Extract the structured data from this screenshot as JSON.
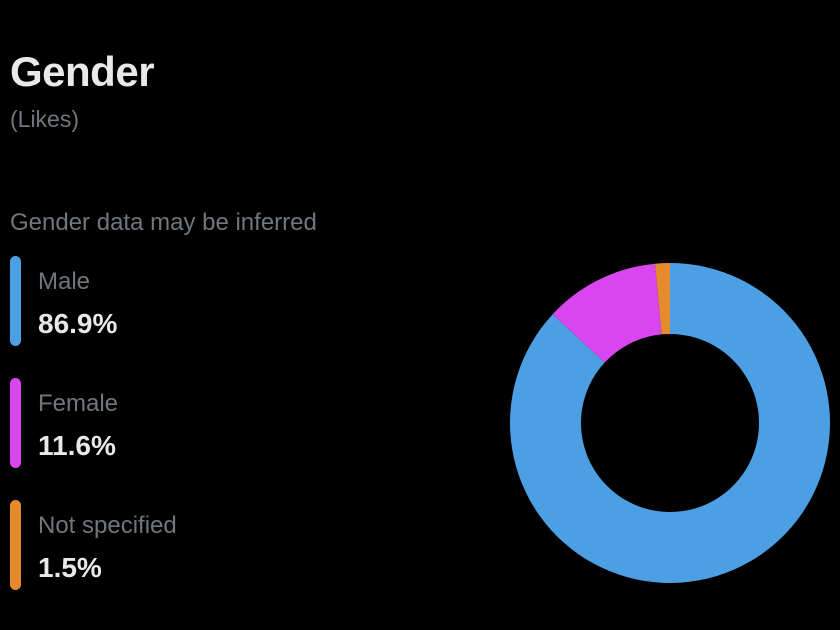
{
  "header": {
    "title": "Gender",
    "subtitle": "(Likes)"
  },
  "note": "Gender data may be inferred",
  "chart_data": {
    "type": "pie",
    "style": "donut",
    "title": "Gender",
    "subtitle": "(Likes)",
    "start_angle_deg": 0,
    "direction": "clockwise",
    "slices": [
      {
        "label": "Male",
        "value": 86.9,
        "display": "86.9%",
        "color": "#4c9fe3"
      },
      {
        "label": "Female",
        "value": 11.6,
        "display": "11.6%",
        "color": "#d946ef"
      },
      {
        "label": "Not specified",
        "value": 1.5,
        "display": "1.5%",
        "color": "#e68a2e"
      }
    ],
    "legend_position": "left"
  }
}
